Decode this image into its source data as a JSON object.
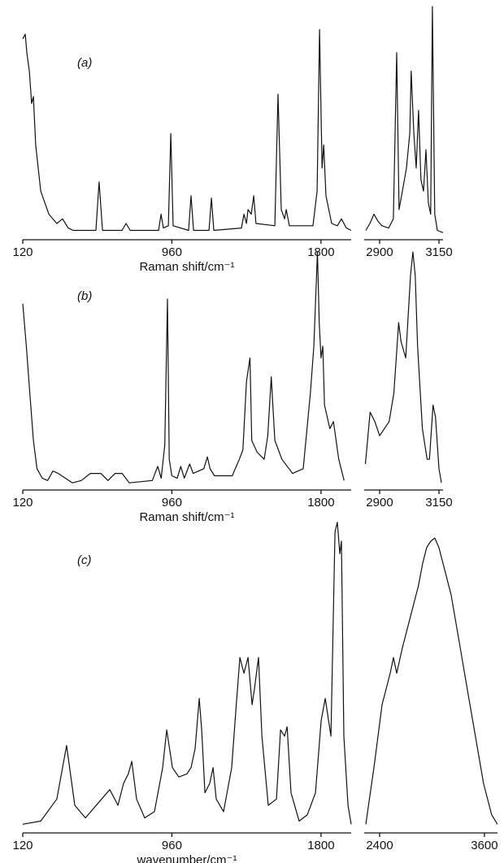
{
  "chart_data": [
    {
      "type": "line",
      "label": "(a)",
      "xlabel": "Raman shift/cm⁻¹",
      "color": "#111111",
      "ylim": [
        0,
        100
      ],
      "panels": [
        {
          "xlim": [
            120,
            1970
          ],
          "xticks": [
            120,
            960,
            1800
          ],
          "x": [
            120,
            134,
            143,
            157,
            170,
            180,
            193,
            221,
            267,
            312,
            344,
            376,
            404,
            532,
            550,
            569,
            679,
            702,
            725,
            885,
            899,
            912,
            940,
            954,
            967,
            1054,
            1068,
            1082,
            1169,
            1183,
            1196,
            1352,
            1366,
            1380,
            1389,
            1407,
            1421,
            1434,
            1540,
            1558,
            1576,
            1595,
            1604,
            1622,
            1755,
            1778,
            1792,
            1806,
            1815,
            1828,
            1860,
            1892,
            1915,
            1943,
            1970
          ],
          "values": [
            86,
            88,
            80,
            72,
            58,
            61,
            40,
            20,
            10,
            6,
            8,
            4,
            3,
            3,
            24,
            3,
            3,
            6,
            3,
            3,
            10,
            4,
            5,
            45,
            5,
            3,
            18,
            3,
            3,
            17,
            3,
            4,
            10,
            6,
            12,
            10,
            18,
            6,
            5,
            62,
            12,
            8,
            12,
            5,
            5,
            20,
            90,
            30,
            40,
            18,
            6,
            5,
            8,
            4,
            3
          ]
        },
        {
          "xlim": [
            2835,
            3167
          ],
          "xticks": [
            2900,
            3150
          ],
          "x": [
            2842,
            2859,
            2876,
            2893,
            2910,
            2938,
            2958,
            2972,
            2982,
            2996,
            3013,
            3027,
            3033,
            3044,
            3054,
            3064,
            3074,
            3085,
            3095,
            3105,
            3115,
            3122,
            3132,
            3143,
            3167
          ],
          "values": [
            3,
            6,
            10,
            7,
            5,
            4,
            8,
            80,
            12,
            20,
            30,
            45,
            72,
            45,
            30,
            55,
            25,
            20,
            38,
            15,
            10,
            100,
            10,
            3,
            2
          ]
        }
      ]
    },
    {
      "type": "line",
      "label": "(b)",
      "xlabel": "Raman shift/cm⁻¹",
      "color": "#111111",
      "ylim": [
        0,
        100
      ],
      "panels": [
        {
          "xlim": [
            120,
            1970
          ],
          "xticks": [
            120,
            960,
            1800
          ],
          "x": [
            120,
            140,
            160,
            180,
            200,
            230,
            260,
            290,
            320,
            400,
            450,
            500,
            560,
            600,
            640,
            680,
            720,
            850,
            880,
            900,
            920,
            935,
            945,
            960,
            990,
            1010,
            1030,
            1060,
            1080,
            1110,
            1140,
            1160,
            1175,
            1200,
            1300,
            1340,
            1360,
            1380,
            1400,
            1410,
            1440,
            1480,
            1500,
            1520,
            1540,
            1580,
            1640,
            1700,
            1740,
            1760,
            1780,
            1790,
            1800,
            1810,
            1820,
            1850,
            1870,
            1900,
            1930
          ],
          "values": [
            78,
            60,
            40,
            20,
            8,
            4,
            3,
            7,
            6,
            2,
            3,
            6,
            6,
            3,
            6,
            6,
            2,
            3,
            9,
            4,
            18,
            80,
            12,
            5,
            4,
            9,
            4,
            10,
            6,
            7,
            8,
            13,
            8,
            5,
            5,
            12,
            16,
            45,
            55,
            20,
            15,
            12,
            22,
            47,
            20,
            12,
            6,
            8,
            40,
            60,
            100,
            70,
            55,
            60,
            35,
            25,
            28,
            12,
            3
          ]
        },
        {
          "xlim": [
            2835,
            3167
          ],
          "xticks": [
            2900,
            3150
          ],
          "x": [
            2840,
            2860,
            2880,
            2900,
            2940,
            2960,
            2980,
            2990,
            3010,
            3030,
            3040,
            3050,
            3060,
            3080,
            3100,
            3110,
            3125,
            3135,
            3150,
            3160
          ],
          "values": [
            10,
            32,
            28,
            22,
            28,
            40,
            70,
            62,
            55,
            90,
            100,
            90,
            60,
            25,
            12,
            12,
            35,
            30,
            8,
            2
          ]
        }
      ]
    },
    {
      "type": "line",
      "label": "(c)",
      "xlabel": "wavenumber/cm⁻¹",
      "color": "#111111",
      "ylim": [
        0,
        100
      ],
      "panels": [
        {
          "xlim": [
            120,
            1970
          ],
          "xticks": [
            120,
            960,
            1800
          ],
          "x": [
            120,
            221,
            312,
            367,
            413,
            473,
            564,
            610,
            656,
            688,
            715,
            734,
            761,
            807,
            862,
            908,
            931,
            963,
            999,
            1045,
            1068,
            1091,
            1114,
            1128,
            1146,
            1173,
            1192,
            1210,
            1251,
            1297,
            1320,
            1343,
            1366,
            1389,
            1412,
            1425,
            1448,
            1467,
            1503,
            1549,
            1572,
            1595,
            1609,
            1631,
            1677,
            1723,
            1769,
            1801,
            1824,
            1856,
            1879,
            1892,
            1906,
            1915,
            1929,
            1952,
            1970
          ],
          "values": [
            2,
            3,
            10,
            27,
            8,
            4,
            10,
            13,
            8,
            15,
            18,
            22,
            10,
            4,
            6,
            20,
            32,
            20,
            17,
            18,
            20,
            26,
            42,
            32,
            12,
            15,
            20,
            10,
            6,
            20,
            38,
            55,
            50,
            55,
            40,
            45,
            55,
            30,
            8,
            10,
            32,
            30,
            33,
            12,
            3,
            5,
            12,
            35,
            42,
            30,
            95,
            98,
            88,
            92,
            30,
            8,
            2
          ]
        },
        {
          "xlim": [
            2223,
            3750
          ],
          "xticks": [
            2400,
            3600
          ],
          "x": [
            2242,
            2335,
            2428,
            2474,
            2521,
            2558,
            2595,
            2660,
            2753,
            2846,
            2893,
            2939,
            2986,
            3032,
            3079,
            3125,
            3218,
            3311,
            3404,
            3497,
            3590,
            3683,
            3749
          ],
          "values": [
            2,
            20,
            40,
            45,
            50,
            55,
            50,
            58,
            68,
            78,
            85,
            90,
            92,
            93,
            90,
            85,
            75,
            60,
            45,
            30,
            15,
            5,
            2
          ]
        }
      ]
    }
  ]
}
